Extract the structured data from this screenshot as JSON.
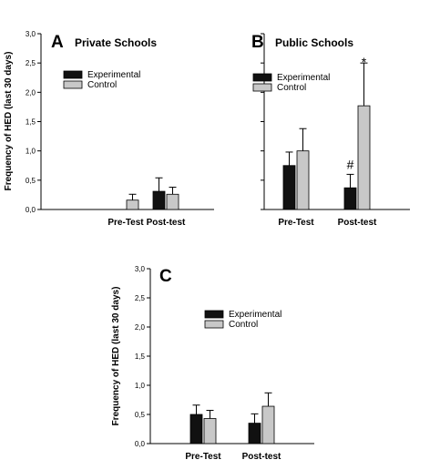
{
  "colors": {
    "experimental": "#111111",
    "control": "#c8c8c8",
    "axis": "#000000"
  },
  "chart_data": [
    {
      "type": "bar",
      "panel": "A",
      "title": "Private Schools",
      "ylabel": "Frequency of HED (last 30 days)",
      "xlabel": "",
      "ylim": [
        0,
        3
      ],
      "yticks": [
        "0,0",
        "0,5",
        "1,0",
        "1,5",
        "2,0",
        "2,5",
        "3,0"
      ],
      "categories": [
        "Pre-Test",
        "Post-test"
      ],
      "legend": {
        "placement": "top-left",
        "entries": [
          "Experimental",
          "Control"
        ]
      },
      "series": [
        {
          "name": "Experimental",
          "values": [
            0,
            0.31
          ],
          "errors": [
            0,
            0.23
          ]
        },
        {
          "name": "Control",
          "values": [
            0.16,
            0.26
          ],
          "errors": [
            0.1,
            0.12
          ]
        }
      ],
      "annotations": []
    },
    {
      "type": "bar",
      "panel": "B",
      "title": "Public Schools",
      "ylabel": "",
      "xlabel": "",
      "ylim": [
        0,
        3
      ],
      "yticks": [],
      "categories": [
        "Pre-Test",
        "Post-test"
      ],
      "legend": {
        "placement": "top-left",
        "entries": [
          "Experimental",
          "Control"
        ]
      },
      "series": [
        {
          "name": "Experimental",
          "values": [
            0.75,
            0.37
          ],
          "errors": [
            0.23,
            0.23
          ]
        },
        {
          "name": "Control",
          "values": [
            1.0,
            1.77
          ],
          "errors": [
            0.38,
            0.73
          ]
        }
      ],
      "annotations": [
        {
          "text": "#",
          "category": 1,
          "series": 0
        },
        {
          "text": "*",
          "category": 1,
          "series": 1
        }
      ]
    },
    {
      "type": "bar",
      "panel": "C",
      "title": "",
      "ylabel": "Frequency of HED (last 30 days)",
      "xlabel": "",
      "ylim": [
        0,
        3
      ],
      "yticks": [
        "0,0",
        "0,5",
        "1,0",
        "1,5",
        "2,0",
        "2,5",
        "3,0"
      ],
      "categories": [
        "Pre-Test",
        "Post-test"
      ],
      "legend": {
        "placement": "top-center",
        "entries": [
          "Experimental",
          "Control"
        ]
      },
      "series": [
        {
          "name": "Experimental",
          "values": [
            0.5,
            0.35
          ],
          "errors": [
            0.16,
            0.16
          ]
        },
        {
          "name": "Control",
          "values": [
            0.43,
            0.64
          ],
          "errors": [
            0.14,
            0.23
          ]
        }
      ],
      "annotations": []
    }
  ]
}
